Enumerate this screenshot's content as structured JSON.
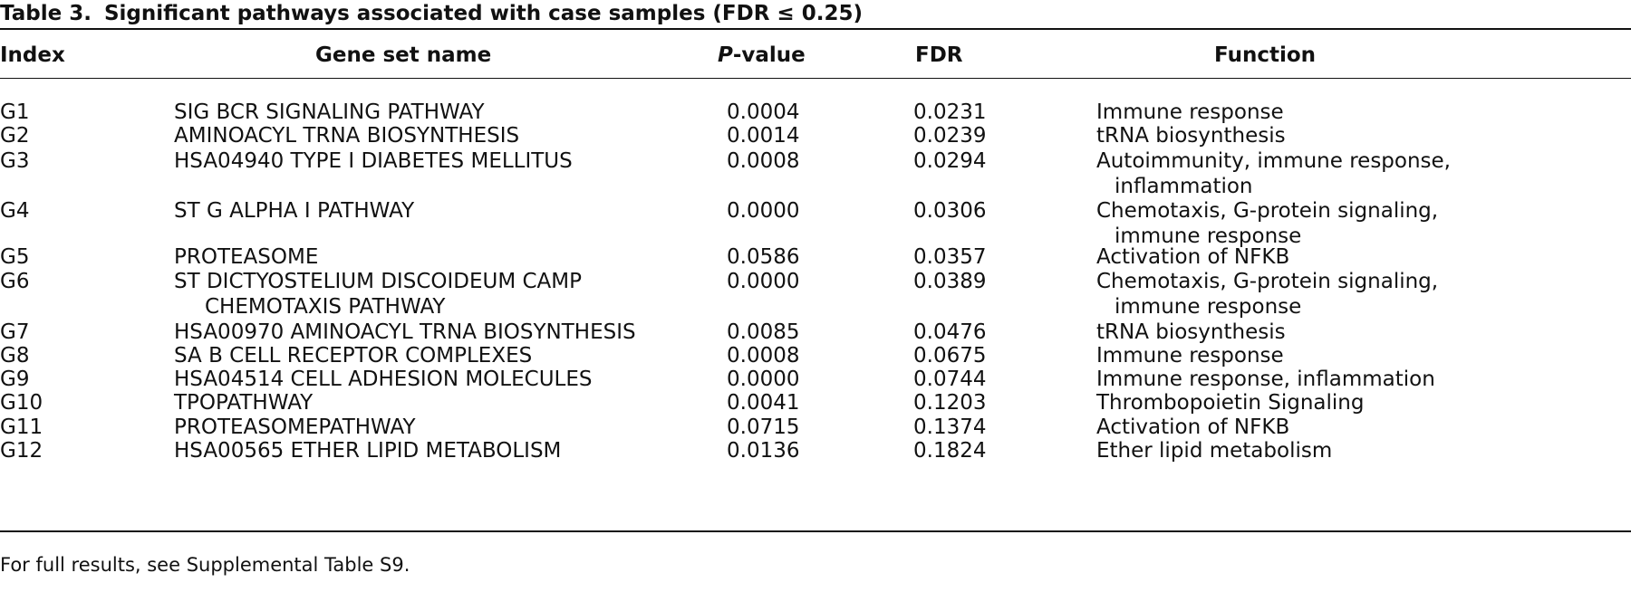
{
  "caption": {
    "number": "Table 3.",
    "title": "Significant pathways associated with case samples (FDR ≤ 0.25)"
  },
  "headers": {
    "index": "Index",
    "name": "Gene set name",
    "pvalue_italic": "P",
    "pvalue_rest": "-value",
    "fdr": "FDR",
    "function": "Function"
  },
  "rows": [
    {
      "index": "G1",
      "name": [
        "SIG BCR SIGNALING PATHWAY"
      ],
      "pvalue": "0.0004",
      "fdr": "0.0231",
      "function": [
        "Immune response"
      ]
    },
    {
      "index": "G2",
      "name": [
        "AMINOACYL TRNA BIOSYNTHESIS"
      ],
      "pvalue": "0.0014",
      "fdr": "0.0239",
      "function": [
        "tRNA biosynthesis"
      ]
    },
    {
      "index": "G3",
      "name": [
        "HSA04940 TYPE I DIABETES MELLITUS"
      ],
      "pvalue": "0.0008",
      "fdr": "0.0294",
      "function": [
        "Autoimmunity, immune response,",
        "inflammation"
      ]
    },
    {
      "index": "G4",
      "name": [
        "ST G ALPHA I PATHWAY"
      ],
      "pvalue": "0.0000",
      "fdr": "0.0306",
      "function": [
        "Chemotaxis, G-protein signaling,",
        "immune response"
      ]
    },
    {
      "index": "G5",
      "name": [
        "PROTEASOME"
      ],
      "pvalue": "0.0586",
      "fdr": "0.0357",
      "function": [
        "Activation of NFKB"
      ]
    },
    {
      "index": "G6",
      "name": [
        "ST DICTYOSTELIUM DISCOIDEUM CAMP",
        "CHEMOTAXIS PATHWAY"
      ],
      "pvalue": "0.0000",
      "fdr": "0.0389",
      "function": [
        "Chemotaxis, G-protein signaling,",
        "immune response"
      ]
    },
    {
      "index": "G7",
      "name": [
        "HSA00970 AMINOACYL TRNA BIOSYNTHESIS"
      ],
      "pvalue": "0.0085",
      "fdr": "0.0476",
      "function": [
        "tRNA biosynthesis"
      ]
    },
    {
      "index": "G8",
      "name": [
        "SA B CELL RECEPTOR COMPLEXES"
      ],
      "pvalue": "0.0008",
      "fdr": "0.0675",
      "function": [
        "Immune response"
      ]
    },
    {
      "index": "G9",
      "name": [
        "HSA04514 CELL ADHESION MOLECULES"
      ],
      "pvalue": "0.0000",
      "fdr": "0.0744",
      "function": [
        "Immune response, inflammation"
      ]
    },
    {
      "index": "G10",
      "name": [
        "TPOPATHWAY"
      ],
      "pvalue": "0.0041",
      "fdr": "0.1203",
      "function": [
        "Thrombopoietin Signaling"
      ]
    },
    {
      "index": "G11",
      "name": [
        "PROTEASOMEPATHWAY"
      ],
      "pvalue": "0.0715",
      "fdr": "0.1374",
      "function": [
        "Activation of NFKB"
      ]
    },
    {
      "index": "G12",
      "name": [
        "HSA00565 ETHER LIPID METABOLISM"
      ],
      "pvalue": "0.0136",
      "fdr": "0.1824",
      "function": [
        "Ether lipid metabolism"
      ]
    }
  ],
  "footnote": "For full results, see Supplemental Table S9."
}
